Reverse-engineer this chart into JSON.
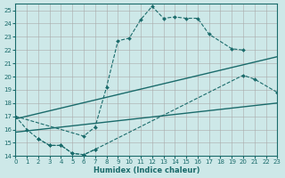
{
  "xlabel": "Humidex (Indice chaleur)",
  "bg_color": "#cde8e8",
  "line_color": "#1a6b6b",
  "xlim": [
    0,
    23
  ],
  "ylim": [
    14,
    25.5
  ],
  "xticks": [
    0,
    1,
    2,
    3,
    4,
    5,
    6,
    7,
    8,
    9,
    10,
    11,
    12,
    13,
    14,
    15,
    16,
    17,
    18,
    19,
    20,
    21,
    22,
    23
  ],
  "yticks": [
    14,
    15,
    16,
    17,
    18,
    19,
    20,
    21,
    22,
    23,
    24,
    25
  ],
  "curve1_x": [
    0,
    1,
    2,
    3,
    4,
    5,
    6,
    7
  ],
  "curve1_y": [
    17.0,
    16.0,
    15.3,
    14.8,
    14.8,
    14.2,
    14.1,
    14.5
  ],
  "curve2_x": [
    0,
    6,
    7,
    8,
    9,
    10,
    11,
    12,
    13,
    14,
    15,
    16,
    17,
    19,
    20
  ],
  "curve2_y": [
    17.0,
    15.5,
    16.2,
    19.2,
    22.7,
    22.9,
    24.3,
    25.3,
    24.4,
    24.5,
    24.4,
    24.4,
    23.2,
    22.1,
    22.0
  ],
  "curve3_x": [
    2,
    3,
    4,
    5,
    6,
    7,
    20,
    21,
    23
  ],
  "curve3_y": [
    15.3,
    14.8,
    14.8,
    14.2,
    14.1,
    14.5,
    20.1,
    19.8,
    18.8
  ],
  "line1_x": [
    0,
    23
  ],
  "line1_y": [
    15.8,
    18.0
  ],
  "line2_x": [
    0,
    23
  ],
  "line2_y": [
    16.8,
    21.5
  ]
}
